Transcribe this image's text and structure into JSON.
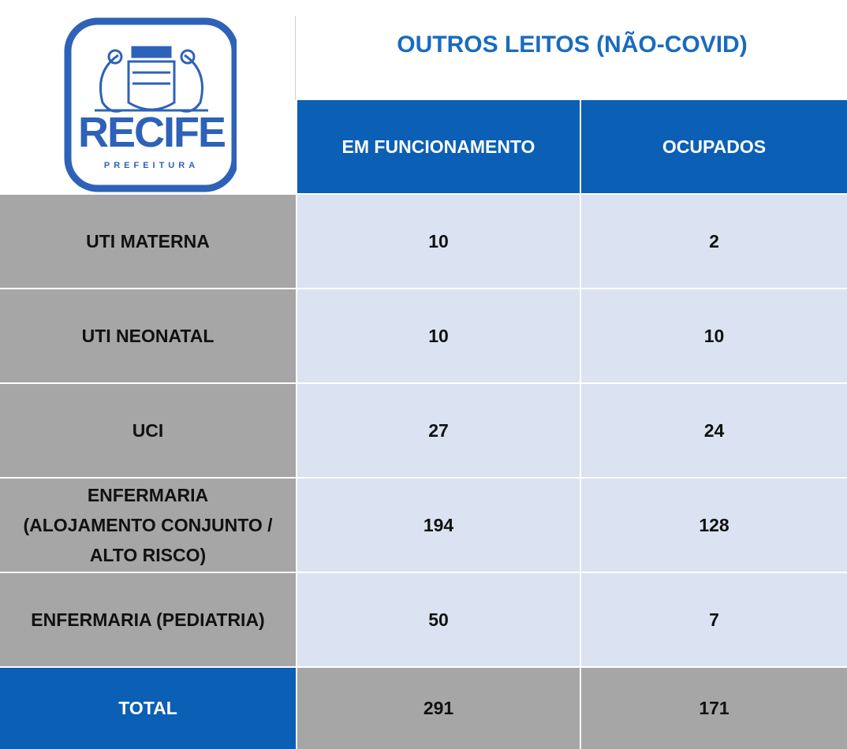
{
  "logo": {
    "name": "RECIFE",
    "subtitle": "PREFEITURA"
  },
  "title": "OUTROS LEITOS (NÃO-COVID)",
  "columns": [
    "EM FUNCIONAMENTO",
    "OCUPADOS"
  ],
  "rows": [
    {
      "label": [
        "UTI MATERNA"
      ],
      "values": [
        10,
        2
      ]
    },
    {
      "label": [
        "UTI NEONATAL"
      ],
      "values": [
        10,
        10
      ]
    },
    {
      "label": [
        "UCI"
      ],
      "values": [
        27,
        24
      ]
    },
    {
      "label": [
        "ENFERMARIA",
        "(ALOJAMENTO CONJUNTO /",
        "ALTO RISCO)"
      ],
      "values": [
        194,
        128
      ]
    },
    {
      "label": [
        "ENFERMARIA (PEDIATRIA)"
      ],
      "values": [
        50,
        7
      ]
    }
  ],
  "total": {
    "label": "TOTAL",
    "values": [
      291,
      171
    ]
  }
}
